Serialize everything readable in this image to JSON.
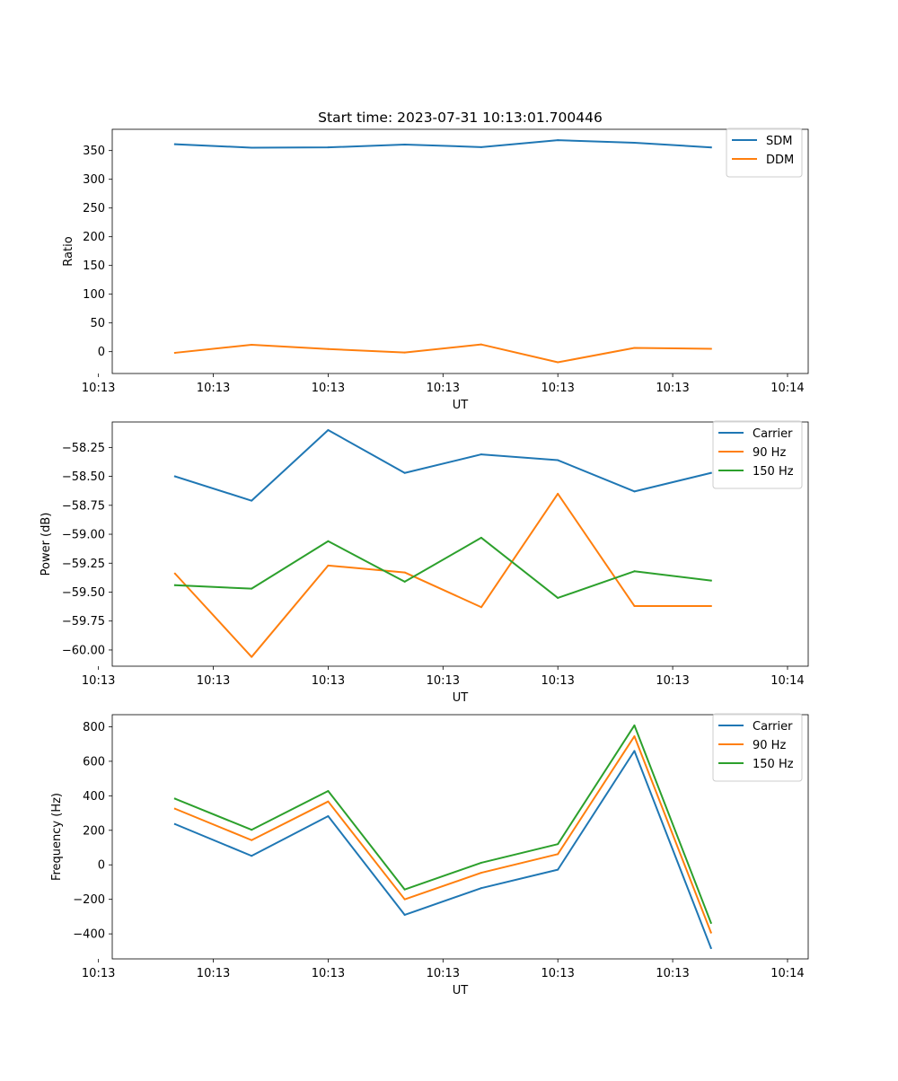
{
  "figure_title": "Start time: 2023-07-31 10:13:01.700446",
  "colors": {
    "blue": "#1f77b4",
    "orange": "#ff7f0e",
    "green": "#2ca02c"
  },
  "chart_data": [
    {
      "type": "line",
      "title": "Start time: 2023-07-31 10:13:01.700446",
      "xlabel": "UT",
      "ylabel": "Ratio",
      "x": [
        1,
        2,
        3,
        4,
        5,
        6,
        7,
        8
      ],
      "xlim": [
        0.18,
        9.27
      ],
      "x_ticks": [
        0,
        1.5,
        3,
        4.5,
        6,
        7.5,
        9
      ],
      "x_tick_labels": [
        "10:13",
        "10:13",
        "10:13",
        "10:13",
        "10:13",
        "10:13",
        "10:14"
      ],
      "ylim": [
        -38,
        387
      ],
      "y_ticks": [
        0,
        50,
        100,
        150,
        200,
        250,
        300,
        350
      ],
      "y_tick_labels": [
        "0",
        "50",
        "100",
        "150",
        "200",
        "250",
        "300",
        "350"
      ],
      "legend_position": "top-right",
      "series": [
        {
          "name": "SDM",
          "color": "#1f77b4",
          "values": [
            361,
            355,
            355.5,
            360.5,
            356,
            368,
            363.5,
            355.5
          ]
        },
        {
          "name": "DDM",
          "color": "#ff7f0e",
          "values": [
            -2,
            12,
            4.5,
            -1.5,
            12.5,
            -18.5,
            6.5,
            5
          ]
        }
      ]
    },
    {
      "type": "line",
      "xlabel": "UT",
      "ylabel": "Power (dB)",
      "x": [
        1,
        2,
        3,
        4,
        5,
        6,
        7,
        8
      ],
      "xlim": [
        0.18,
        9.27
      ],
      "x_ticks": [
        0,
        1.5,
        3,
        4.5,
        6,
        7.5,
        9
      ],
      "x_tick_labels": [
        "10:13",
        "10:13",
        "10:13",
        "10:13",
        "10:13",
        "10:13",
        "10:14"
      ],
      "ylim": [
        -60.14,
        -58.03
      ],
      "y_ticks": [
        -60.0,
        -59.75,
        -59.5,
        -59.25,
        -59.0,
        -58.75,
        -58.5,
        -58.25
      ],
      "y_tick_labels": [
        "−60.00",
        "−59.75",
        "−59.50",
        "−59.25",
        "−59.00",
        "−58.75",
        "−58.50",
        "−58.25"
      ],
      "legend_position": "top-right",
      "series": [
        {
          "name": "Carrier",
          "color": "#1f77b4",
          "values": [
            -58.5,
            -58.71,
            -58.1,
            -58.47,
            -58.31,
            -58.36,
            -58.63,
            -58.47
          ]
        },
        {
          "name": "90 Hz",
          "color": "#ff7f0e",
          "values": [
            -59.34,
            -60.06,
            -59.27,
            -59.33,
            -59.63,
            -58.65,
            -59.62,
            -59.62
          ]
        },
        {
          "name": "150 Hz",
          "color": "#2ca02c",
          "values": [
            -59.44,
            -59.47,
            -59.06,
            -59.41,
            -59.03,
            -59.55,
            -59.32,
            -59.4
          ]
        }
      ]
    },
    {
      "type": "line",
      "xlabel": "UT",
      "ylabel": "Frequency (Hz)",
      "x": [
        1,
        2,
        3,
        4,
        5,
        6,
        7,
        8
      ],
      "xlim": [
        0.18,
        9.27
      ],
      "x_ticks": [
        0,
        1.5,
        3,
        4.5,
        6,
        7.5,
        9
      ],
      "x_tick_labels": [
        "10:13",
        "10:13",
        "10:13",
        "10:13",
        "10:13",
        "10:13",
        "10:14"
      ],
      "ylim": [
        -545,
        870
      ],
      "y_ticks": [
        -400,
        -200,
        0,
        200,
        400,
        600,
        800
      ],
      "y_tick_labels": [
        "−400",
        "−200",
        "0",
        "200",
        "400",
        "600",
        "800"
      ],
      "legend_position": "top-right",
      "series": [
        {
          "name": "Carrier",
          "color": "#1f77b4",
          "values": [
            236,
            52,
            282,
            -290,
            -135,
            -28,
            660,
            -482
          ]
        },
        {
          "name": "90 Hz",
          "color": "#ff7f0e",
          "values": [
            325,
            143,
            367,
            -200,
            -46,
            62,
            745,
            -392
          ]
        },
        {
          "name": "150 Hz",
          "color": "#2ca02c",
          "values": [
            383,
            203,
            428,
            -143,
            12,
            120,
            808,
            -336
          ]
        }
      ]
    }
  ]
}
